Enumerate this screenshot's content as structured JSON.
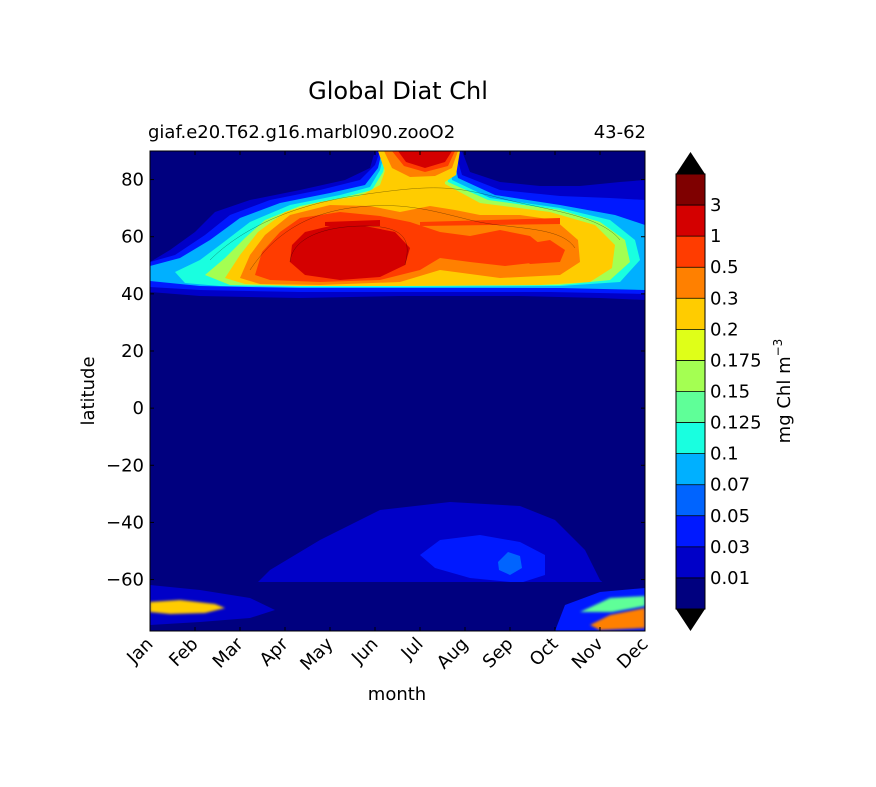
{
  "chart_data": {
    "type": "heatmap",
    "title": "Global Diat Chl",
    "subtitle_left": "giaf.e20.T62.g16.marbl090.zooO2",
    "subtitle_right": "43-62",
    "xlabel": "month",
    "ylabel": "latitude",
    "x_categories": [
      "Jan",
      "Feb",
      "Mar",
      "Apr",
      "May",
      "Jun",
      "Jul",
      "Aug",
      "Sep",
      "Oct",
      "Nov",
      "Dec"
    ],
    "y_ticks": [
      80,
      60,
      40,
      20,
      0,
      -20,
      -40,
      -60
    ],
    "ylim": [
      -78,
      90
    ],
    "colorbar": {
      "label": "mg Chl m",
      "label_exponent": "−3",
      "levels": [
        "0.01",
        "0.03",
        "0.05",
        "0.07",
        "0.1",
        "0.125",
        "0.15",
        "0.175",
        "0.2",
        "0.3",
        "0.5",
        "1",
        "3"
      ],
      "colors": [
        "#00007f",
        "#0000c8",
        "#0019ff",
        "#0064ff",
        "#00b0ff",
        "#19ffe0",
        "#5fff98",
        "#a4ff52",
        "#dfff18",
        "#ffcc00",
        "#ff8000",
        "#ff3c00",
        "#d40000",
        "#7f0000"
      ],
      "extend": "both"
    }
  }
}
